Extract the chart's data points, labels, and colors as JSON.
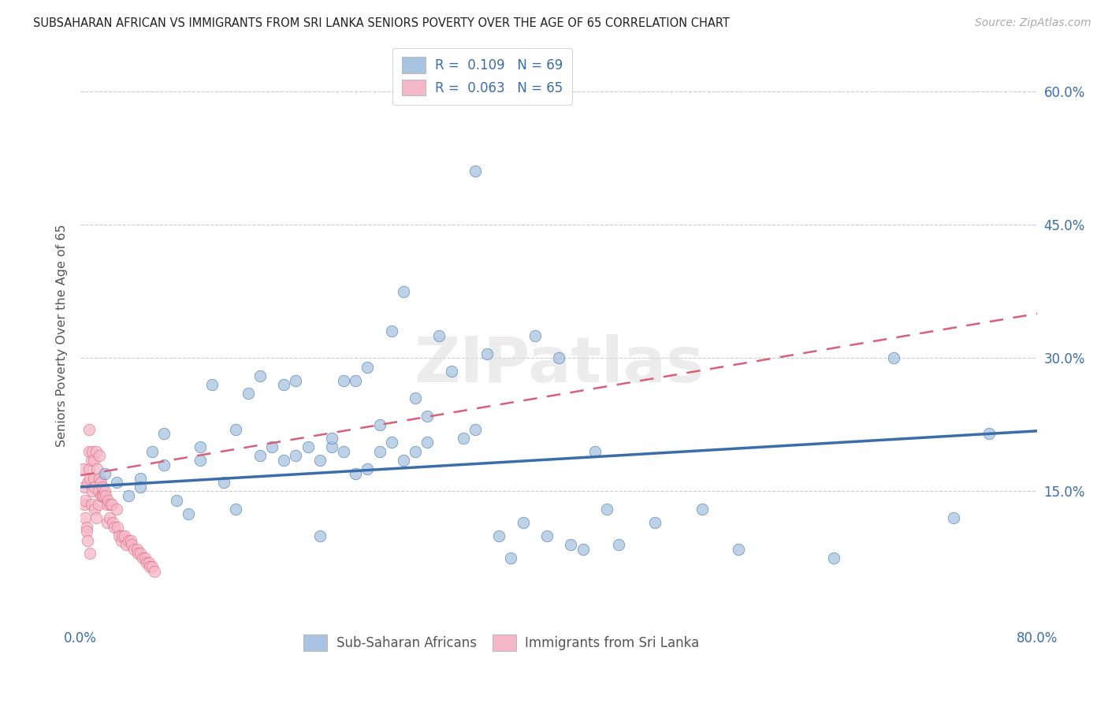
{
  "title": "SUBSAHARAN AFRICAN VS IMMIGRANTS FROM SRI LANKA SENIORS POVERTY OVER THE AGE OF 65 CORRELATION CHART",
  "source": "Source: ZipAtlas.com",
  "ylabel": "Seniors Poverty Over the Age of 65",
  "xlim": [
    0.0,
    0.8
  ],
  "ylim": [
    0.0,
    0.65
  ],
  "ytick_positions": [
    0.15,
    0.3,
    0.45,
    0.6
  ],
  "ytick_labels": [
    "15.0%",
    "30.0%",
    "45.0%",
    "60.0%"
  ],
  "blue_R": 0.109,
  "blue_N": 69,
  "pink_R": 0.063,
  "pink_N": 65,
  "blue_color": "#a8c4e0",
  "blue_line_color": "#3b6daa",
  "pink_color": "#f5b8c8",
  "pink_line_color": "#d9607a",
  "watermark": "ZIPatlas",
  "blue_scatter_x": [
    0.02,
    0.03,
    0.04,
    0.05,
    0.05,
    0.06,
    0.07,
    0.07,
    0.08,
    0.09,
    0.1,
    0.1,
    0.11,
    0.12,
    0.13,
    0.13,
    0.14,
    0.15,
    0.15,
    0.16,
    0.17,
    0.17,
    0.18,
    0.18,
    0.19,
    0.2,
    0.2,
    0.21,
    0.21,
    0.22,
    0.22,
    0.23,
    0.23,
    0.24,
    0.24,
    0.25,
    0.25,
    0.26,
    0.26,
    0.27,
    0.27,
    0.28,
    0.28,
    0.29,
    0.29,
    0.3,
    0.31,
    0.32,
    0.33,
    0.33,
    0.34,
    0.35,
    0.36,
    0.37,
    0.38,
    0.39,
    0.4,
    0.41,
    0.42,
    0.43,
    0.44,
    0.45,
    0.48,
    0.52,
    0.55,
    0.63,
    0.68,
    0.73,
    0.76
  ],
  "blue_scatter_y": [
    0.17,
    0.16,
    0.145,
    0.165,
    0.155,
    0.195,
    0.215,
    0.18,
    0.14,
    0.125,
    0.185,
    0.2,
    0.27,
    0.16,
    0.22,
    0.13,
    0.26,
    0.19,
    0.28,
    0.2,
    0.185,
    0.27,
    0.19,
    0.275,
    0.2,
    0.1,
    0.185,
    0.2,
    0.21,
    0.195,
    0.275,
    0.17,
    0.275,
    0.175,
    0.29,
    0.225,
    0.195,
    0.205,
    0.33,
    0.185,
    0.375,
    0.195,
    0.255,
    0.235,
    0.205,
    0.325,
    0.285,
    0.21,
    0.22,
    0.51,
    0.305,
    0.1,
    0.075,
    0.115,
    0.325,
    0.1,
    0.3,
    0.09,
    0.085,
    0.195,
    0.13,
    0.09,
    0.115,
    0.13,
    0.085,
    0.075,
    0.3,
    0.12,
    0.215
  ],
  "pink_scatter_x": [
    0.002,
    0.003,
    0.003,
    0.004,
    0.004,
    0.005,
    0.005,
    0.006,
    0.006,
    0.007,
    0.007,
    0.007,
    0.008,
    0.008,
    0.009,
    0.009,
    0.01,
    0.01,
    0.011,
    0.011,
    0.012,
    0.012,
    0.013,
    0.013,
    0.014,
    0.015,
    0.015,
    0.016,
    0.016,
    0.017,
    0.017,
    0.018,
    0.018,
    0.019,
    0.02,
    0.021,
    0.022,
    0.022,
    0.023,
    0.024,
    0.025,
    0.026,
    0.027,
    0.028,
    0.03,
    0.031,
    0.032,
    0.034,
    0.035,
    0.037,
    0.038,
    0.04,
    0.042,
    0.043,
    0.045,
    0.047,
    0.048,
    0.05,
    0.052,
    0.054,
    0.055,
    0.057,
    0.058,
    0.06,
    0.062
  ],
  "pink_scatter_y": [
    0.175,
    0.155,
    0.135,
    0.14,
    0.12,
    0.11,
    0.105,
    0.095,
    0.16,
    0.195,
    0.175,
    0.22,
    0.165,
    0.08,
    0.135,
    0.185,
    0.195,
    0.15,
    0.165,
    0.185,
    0.155,
    0.13,
    0.12,
    0.195,
    0.175,
    0.15,
    0.135,
    0.165,
    0.19,
    0.16,
    0.145,
    0.145,
    0.155,
    0.145,
    0.15,
    0.145,
    0.135,
    0.115,
    0.14,
    0.12,
    0.135,
    0.135,
    0.115,
    0.11,
    0.13,
    0.11,
    0.1,
    0.095,
    0.1,
    0.1,
    0.09,
    0.095,
    0.095,
    0.09,
    0.085,
    0.085,
    0.08,
    0.08,
    0.075,
    0.075,
    0.07,
    0.07,
    0.065,
    0.065,
    0.06
  ],
  "blue_line_x0": 0.0,
  "blue_line_x1": 0.8,
  "blue_line_y0": 0.155,
  "blue_line_y1": 0.218,
  "pink_line_x0": 0.0,
  "pink_line_x1": 0.8,
  "pink_line_y0": 0.168,
  "pink_line_y1": 0.35
}
